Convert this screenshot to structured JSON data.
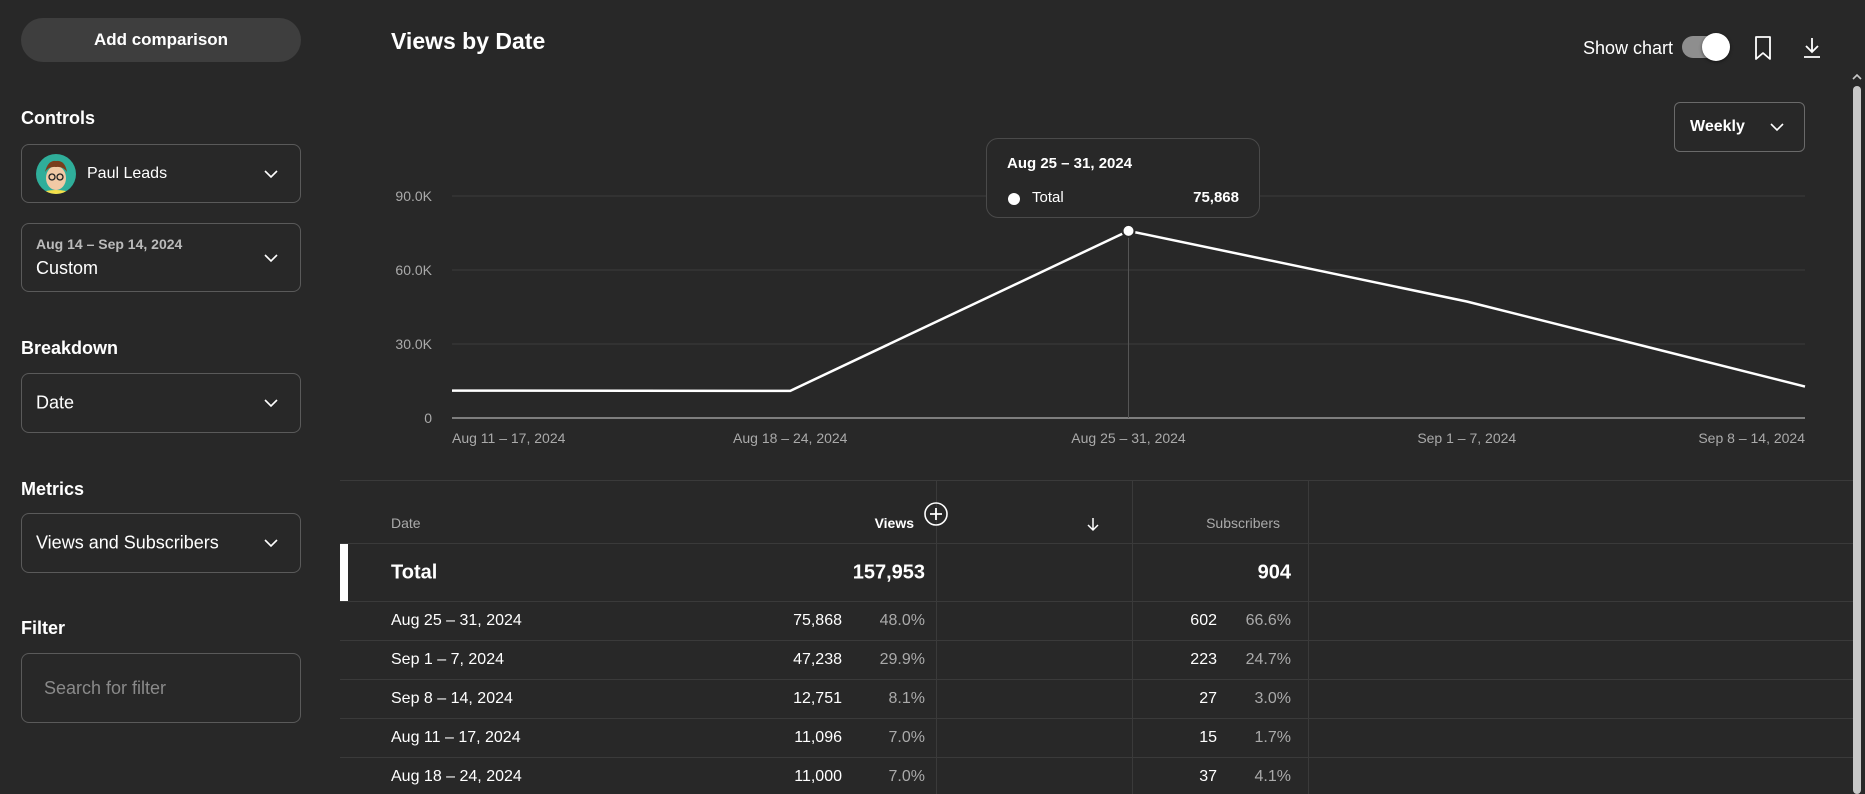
{
  "sidebar": {
    "add_comparison_label": "Add comparison",
    "controls_label": "Controls",
    "account": {
      "name": "Paul Leads"
    },
    "date_range": {
      "range": "Aug 14 – Sep 14, 2024",
      "preset": "Custom"
    },
    "breakdown_label": "Breakdown",
    "breakdown_value": "Date",
    "metrics_label": "Metrics",
    "metrics_value": "Views and Subscribers",
    "filter_label": "Filter",
    "filter_placeholder": "Search for filter"
  },
  "header": {
    "title": "Views by Date",
    "show_chart_label": "Show chart",
    "show_chart_on": true,
    "icons": [
      "bookmark-icon",
      "download-icon"
    ]
  },
  "period_selector": {
    "value": "Weekly"
  },
  "tooltip": {
    "date": "Aug 25 – 31, 2024",
    "series": "Total",
    "value": "75,868"
  },
  "chart_data": {
    "type": "line",
    "x": [
      "Aug 11 – 17, 2024",
      "Aug 18 – 24, 2024",
      "Aug 25 – 31, 2024",
      "Sep 1 – 7, 2024",
      "Sep 8 – 14, 2024"
    ],
    "series": [
      {
        "name": "Total",
        "values": [
          11096,
          11000,
          75868,
          47238,
          12751
        ]
      }
    ],
    "y_ticks": [
      "0",
      "30.0K",
      "60.0K",
      "90.0K"
    ],
    "y_tick_values": [
      0,
      30000,
      60000,
      90000
    ],
    "ylim": [
      0,
      90000
    ],
    "grid": true,
    "highlighted_index": 2,
    "line_color": "#ffffff"
  },
  "table": {
    "columns": {
      "date": "Date",
      "views": "Views",
      "subscribers": "Subscribers"
    },
    "sort_column": "views",
    "sort_direction": "descending",
    "total": {
      "label": "Total",
      "views": "157,953",
      "subscribers": "904"
    },
    "rows": [
      {
        "date": "Aug 25 – 31, 2024",
        "views": "75,868",
        "views_pct": "48.0%",
        "subs": "602",
        "subs_pct": "66.6%"
      },
      {
        "date": "Sep 1 – 7, 2024",
        "views": "47,238",
        "views_pct": "29.9%",
        "subs": "223",
        "subs_pct": "24.7%"
      },
      {
        "date": "Sep 8 – 14, 2024",
        "views": "12,751",
        "views_pct": "8.1%",
        "subs": "27",
        "subs_pct": "3.0%"
      },
      {
        "date": "Aug 11 – 17, 2024",
        "views": "11,096",
        "views_pct": "7.0%",
        "subs": "15",
        "subs_pct": "1.7%"
      },
      {
        "date": "Aug 18 – 24, 2024",
        "views": "11,000",
        "views_pct": "7.0%",
        "subs": "37",
        "subs_pct": "4.1%"
      }
    ]
  },
  "colors": {
    "background": "#282828",
    "border": "#5a5a5a",
    "text": "#ffffff",
    "muted": "#aaaaaa"
  }
}
